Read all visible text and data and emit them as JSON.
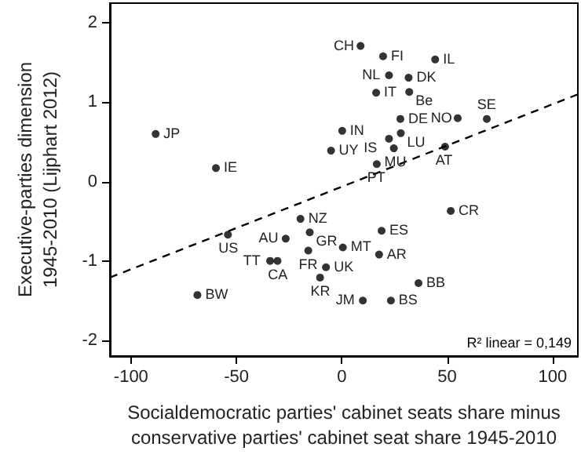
{
  "chart_data": {
    "type": "scatter",
    "xlabel": "Socialdemocratic parties' cabinet seats share minus\nconservative parties' cabinet seat share 1945-2010",
    "ylabel": "Executive-parties dimension\n1945-2010 (Lijphart 2012)",
    "xlim": [
      -110,
      112
    ],
    "ylim": [
      -2.2,
      2.25
    ],
    "xticks": [
      -100,
      -50,
      0,
      50,
      100
    ],
    "yticks": [
      -2,
      -1,
      0,
      1,
      2
    ],
    "grid": false,
    "marker": "circle",
    "series": [
      {
        "color": "#000000",
        "x": [
          8.9,
          19.6,
          44.3,
          22.4,
          31.7,
          16.3,
          32,
          55,
          68.8,
          27.8,
          -88.3,
          0.2,
          28,
          22.4,
          -5.1,
          24.7,
          49,
          16.6,
          -59.7,
          51.7,
          -19.6,
          -54,
          -15.2,
          18.9,
          -26.6,
          0.5,
          -15.9,
          17.7,
          -34,
          -30.5,
          -7.5,
          -10.3,
          36.4,
          -68.5,
          10,
          23.3
        ],
        "values": [
          1.71,
          1.58,
          1.54,
          1.34,
          1.31,
          1.12,
          1.13,
          0.8,
          0.79,
          0.79,
          0.6,
          0.64,
          0.61,
          0.54,
          0.39,
          0.42,
          0.44,
          0.22,
          0.17,
          -0.37,
          -0.47,
          -0.67,
          -0.64,
          -0.62,
          -0.72,
          -0.83,
          -0.87,
          -0.92,
          -1,
          -1,
          -1.08,
          -1.21,
          -1.28,
          -1.43,
          -1.5,
          -1.5
        ]
      },
      {
        "type": "line",
        "color": "#000000",
        "line_style": "dashed",
        "marker": "none",
        "x": [
          -110,
          112
        ],
        "values": [
          -1.21,
          1.1
        ]
      }
    ],
    "annotations": [
      {
        "text": "CH",
        "x": 8.9,
        "y": 1.71
      },
      {
        "text": "FI",
        "x": 19.6,
        "y": 1.58
      },
      {
        "text": "IL",
        "x": 44.3,
        "y": 1.54
      },
      {
        "text": "NL",
        "x": 22.4,
        "y": 1.34
      },
      {
        "text": "DK",
        "x": 31.7,
        "y": 1.31
      },
      {
        "text": "IT",
        "x": 16.3,
        "y": 1.12
      },
      {
        "text": "Be",
        "x": 32,
        "y": 1.13
      },
      {
        "text": "NO",
        "x": 55,
        "y": 0.8
      },
      {
        "text": "SE",
        "x": 68.8,
        "y": 0.79
      },
      {
        "text": "DE",
        "x": 27.8,
        "y": 0.79
      },
      {
        "text": "JP",
        "x": -88.3,
        "y": 0.6
      },
      {
        "text": "IN",
        "x": 0.2,
        "y": 0.64
      },
      {
        "text": "LU",
        "x": 28,
        "y": 0.61
      },
      {
        "text": "IS",
        "x": 22.4,
        "y": 0.54
      },
      {
        "text": "UY",
        "x": -5.1,
        "y": 0.39
      },
      {
        "text": "MU",
        "x": 24.7,
        "y": 0.42
      },
      {
        "text": "AT",
        "x": 49,
        "y": 0.44
      },
      {
        "text": "PT",
        "x": 16.6,
        "y": 0.22
      },
      {
        "text": "IE",
        "x": -59.7,
        "y": 0.17
      },
      {
        "text": "CR",
        "x": 51.7,
        "y": -0.37
      },
      {
        "text": "NZ",
        "x": -19.6,
        "y": -0.47
      },
      {
        "text": "US",
        "x": -54,
        "y": -0.67
      },
      {
        "text": "GR",
        "x": -15.2,
        "y": -0.64
      },
      {
        "text": "ES",
        "x": 18.9,
        "y": -0.62
      },
      {
        "text": "AU",
        "x": -26.6,
        "y": -0.72
      },
      {
        "text": "MT",
        "x": 0.5,
        "y": -0.83
      },
      {
        "text": "FR",
        "x": -15.9,
        "y": -0.87
      },
      {
        "text": "AR",
        "x": 17.7,
        "y": -0.92
      },
      {
        "text": "TT",
        "x": -34,
        "y": -1
      },
      {
        "text": "CA",
        "x": -30.5,
        "y": -1
      },
      {
        "text": "UK",
        "x": -7.5,
        "y": -1.08
      },
      {
        "text": "KR",
        "x": -10.3,
        "y": -1.21
      },
      {
        "text": "BB",
        "x": 36.4,
        "y": -1.28
      },
      {
        "text": "BW",
        "x": -68.5,
        "y": -1.43
      },
      {
        "text": "JM",
        "x": 10,
        "y": -1.5
      },
      {
        "text": "BS",
        "x": 23.3,
        "y": -1.5
      },
      "R² linear = 0,149"
    ]
  }
}
